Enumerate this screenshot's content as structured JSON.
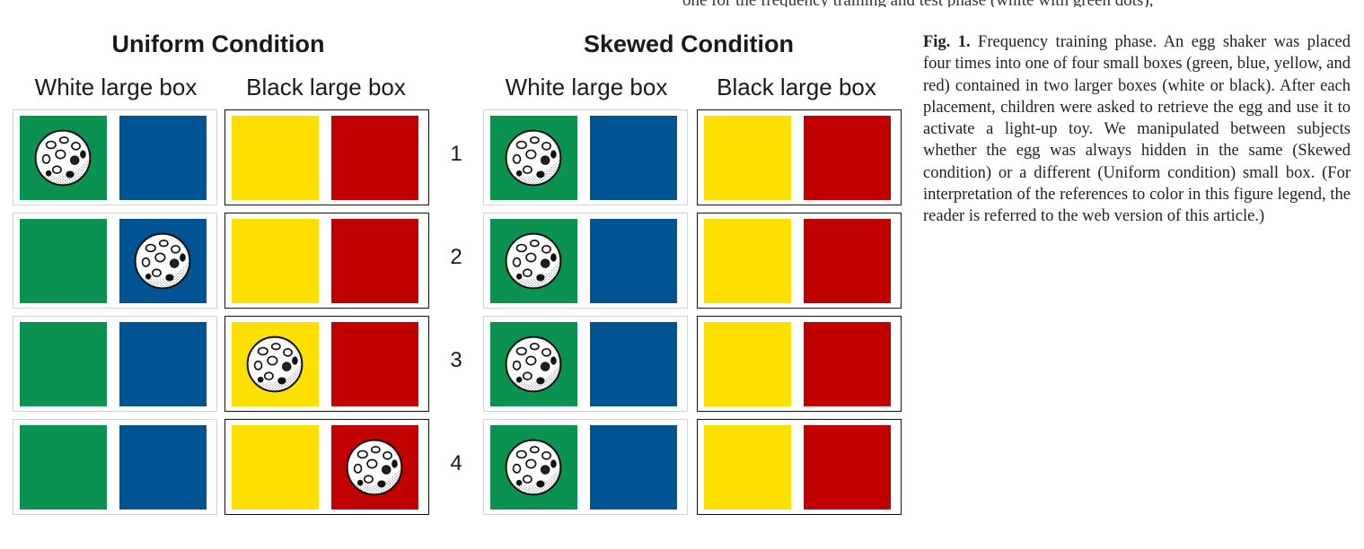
{
  "top_fragment": "one for the frequency training and test phase (white with green dots),",
  "conditions": [
    {
      "title": "Uniform Condition",
      "white_label": "White large box",
      "black_label": "Black large box",
      "egg_positions": [
        "green",
        "blue",
        "yellow",
        "red"
      ]
    },
    {
      "title": "Skewed Condition",
      "white_label": "White large box",
      "black_label": "Black large box",
      "egg_positions": [
        "green",
        "green",
        "green",
        "green"
      ]
    }
  ],
  "trials": [
    "1",
    "2",
    "3",
    "4"
  ],
  "small_box_colors": {
    "green": "#0c9250",
    "blue": "#005494",
    "yellow": "#fde000",
    "red": "#c10000"
  },
  "egg_icon": "egg-shaker-ball-icon",
  "caption": {
    "label": "Fig. 1.",
    "text": "Frequency training phase. An egg shaker was placed four times into one of four small boxes (green, blue, yellow, and red) contained in two larger boxes (white or black). After each placement, children were asked to retrieve the egg and use it to activate a light-up toy. We manipulated between subjects whether the egg was always hidden in the same (Skewed condition) or a different (Uniform condition) small box. (For interpretation of the references to color in this figure legend, the reader is referred to the web version of this article.)"
  }
}
